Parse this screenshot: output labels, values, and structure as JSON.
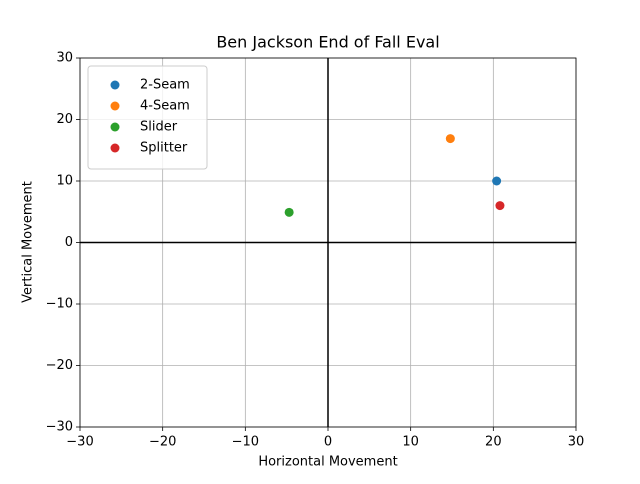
{
  "chart_data": {
    "type": "scatter",
    "title": "Ben Jackson End of Fall Eval",
    "x_label": "Horizontal Movement",
    "y_label": "Vertical Movement",
    "series": [
      {
        "name": "2-Seam",
        "color": "#1f77b4",
        "x": [
          20.4
        ],
        "values": [
          10
        ]
      },
      {
        "name": "4-Seam",
        "color": "#ff7f0e",
        "x": [
          14.8
        ],
        "values": [
          16.9
        ]
      },
      {
        "name": "Slider",
        "color": "#2ca02c",
        "x": [
          -4.7
        ],
        "values": [
          4.9
        ]
      },
      {
        "name": "Splitter",
        "color": "#d62728",
        "x": [
          20.8
        ],
        "values": [
          6
        ]
      }
    ],
    "xlim": [
      -30,
      30
    ],
    "ylim": [
      -30,
      30
    ],
    "xticks": [
      {
        "value": -30,
        "label": "−30"
      },
      {
        "value": -20,
        "label": "−20"
      },
      {
        "value": -10,
        "label": "−10"
      },
      0,
      10,
      20,
      30
    ],
    "yticks": [
      {
        "value": -30,
        "label": "−30"
      },
      {
        "value": -20,
        "label": "−20"
      },
      {
        "value": -10,
        "label": "−10"
      },
      0,
      10,
      20,
      30
    ],
    "grid": true,
    "zero_lines": true,
    "legend": "upper-left"
  }
}
